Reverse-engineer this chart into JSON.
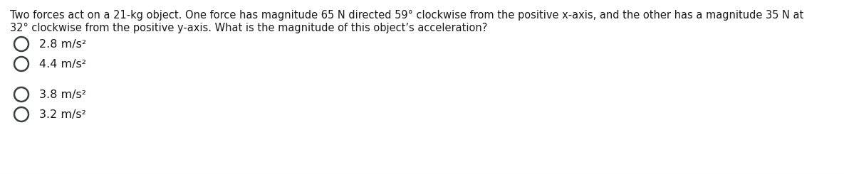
{
  "question_line1": "Two forces act on a 21-kg object. One force has magnitude 65 N directed 59° clockwise from the positive x-axis, and the other has a magnitude 35 N at",
  "question_line2": "32° clockwise from the positive y-axis. What is the magnitude of this object’s acceleration?",
  "options": [
    "2.8 m/s²",
    "4.4 m/s²",
    "3.8 m/s²",
    "3.2 m/s²"
  ],
  "background_color": "#ffffff",
  "text_color": "#1a1a1a",
  "font_size_question": 10.5,
  "font_size_options": 11.5,
  "circle_color": "#3a3f47",
  "circle_linewidth": 1.8
}
